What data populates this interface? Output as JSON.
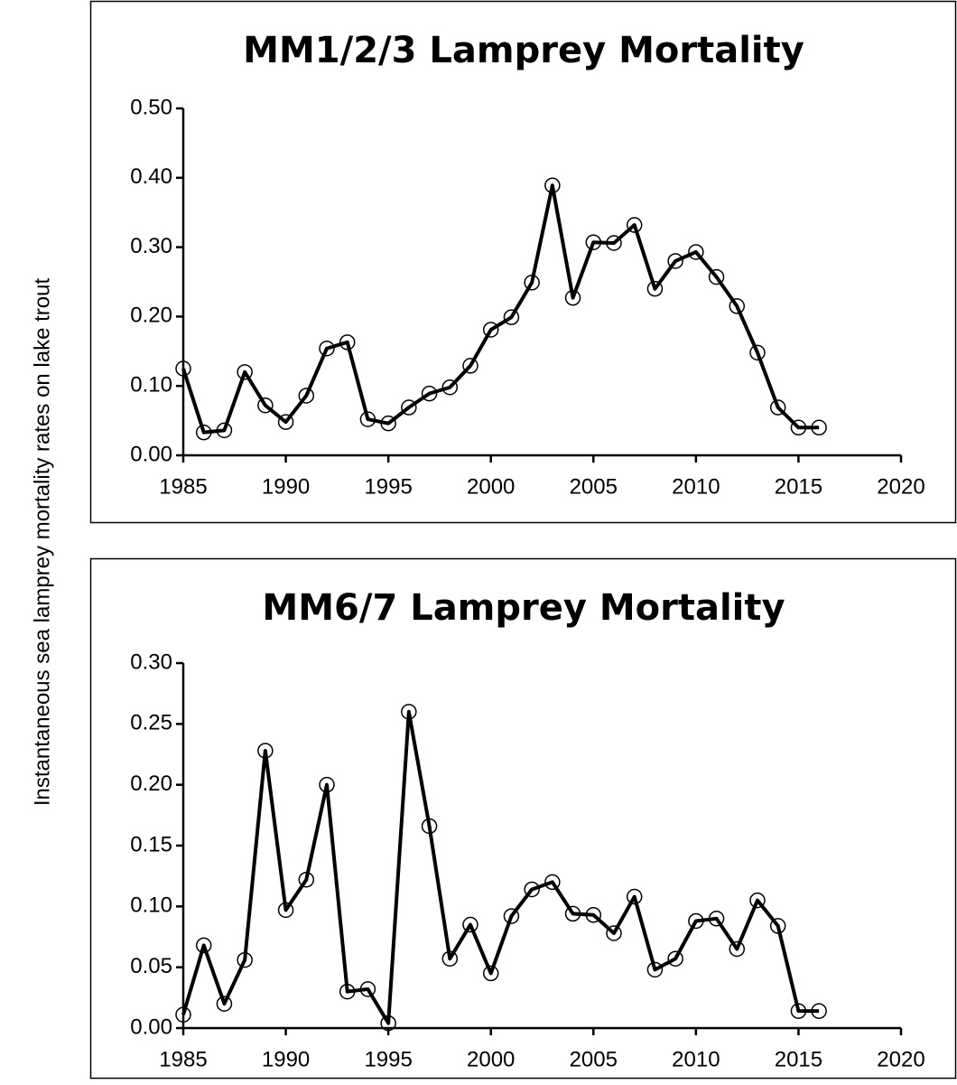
{
  "chart_data": [
    {
      "type": "line",
      "title": "MM1/2/3 Lamprey Mortality",
      "ylabel": "Instantaneous sea lamprey mortality rates on lake trout",
      "x": [
        1985,
        1986,
        1987,
        1988,
        1989,
        1990,
        1991,
        1992,
        1993,
        1994,
        1995,
        1996,
        1997,
        1998,
        1999,
        2000,
        2001,
        2002,
        2003,
        2004,
        2005,
        2006,
        2007,
        2008,
        2009,
        2010,
        2011,
        2012,
        2013,
        2014,
        2015,
        2016
      ],
      "series": [
        {
          "color": "#000000",
          "values": [
            0.125,
            0.033,
            0.036,
            0.12,
            0.072,
            0.048,
            0.086,
            0.154,
            0.163,
            0.052,
            0.046,
            0.069,
            0.089,
            0.098,
            0.129,
            0.181,
            0.199,
            0.249,
            0.389,
            0.227,
            0.307,
            0.306,
            0.332,
            0.24,
            0.28,
            0.293,
            0.257,
            0.215,
            0.148,
            0.069,
            0.04,
            0.04
          ]
        }
      ],
      "xlim": [
        1985,
        2020
      ],
      "xticks": [
        1985,
        1990,
        1995,
        2000,
        2005,
        2010,
        2015,
        2020
      ],
      "ylim": [
        0,
        0.5
      ],
      "yticks": [
        {
          "value": 0,
          "label": "0.00"
        },
        {
          "value": 0.1,
          "label": "0.10"
        },
        {
          "value": 0.2,
          "label": "0.20"
        },
        {
          "value": 0.3,
          "label": "0.30"
        },
        {
          "value": 0.4,
          "label": "0.40"
        },
        {
          "value": 0.5,
          "label": "0.50"
        }
      ]
    },
    {
      "type": "line",
      "title": "MM6/7 Lamprey Mortality",
      "x": [
        1985,
        1986,
        1987,
        1988,
        1989,
        1990,
        1991,
        1992,
        1993,
        1994,
        1995,
        1996,
        1997,
        1998,
        1999,
        2000,
        2001,
        2002,
        2003,
        2004,
        2005,
        2006,
        2007,
        2008,
        2009,
        2010,
        2011,
        2012,
        2013,
        2014,
        2015,
        2016
      ],
      "series": [
        {
          "color": "#000000",
          "values": [
            0.011,
            0.068,
            0.02,
            0.056,
            0.228,
            0.097,
            0.122,
            0.2,
            0.03,
            0.032,
            0.004,
            0.26,
            0.166,
            0.057,
            0.085,
            0.045,
            0.092,
            0.114,
            0.12,
            0.094,
            0.093,
            0.078,
            0.108,
            0.048,
            0.057,
            0.088,
            0.09,
            0.065,
            0.105,
            0.084,
            0.014,
            0.014
          ]
        }
      ],
      "xlim": [
        1985,
        2020
      ],
      "xticks": [
        1985,
        1990,
        1995,
        2000,
        2005,
        2010,
        2015,
        2020
      ],
      "ylim": [
        0,
        0.3
      ],
      "yticks": [
        {
          "value": 0,
          "label": "0.00"
        },
        {
          "value": 0.05,
          "label": "0.05"
        },
        {
          "value": 0.1,
          "label": "0.10"
        },
        {
          "value": 0.15,
          "label": "0.15"
        },
        {
          "value": 0.2,
          "label": "0.20"
        },
        {
          "value": 0.25,
          "label": "0.25"
        },
        {
          "value": 0.3,
          "label": "0.30"
        }
      ]
    }
  ]
}
